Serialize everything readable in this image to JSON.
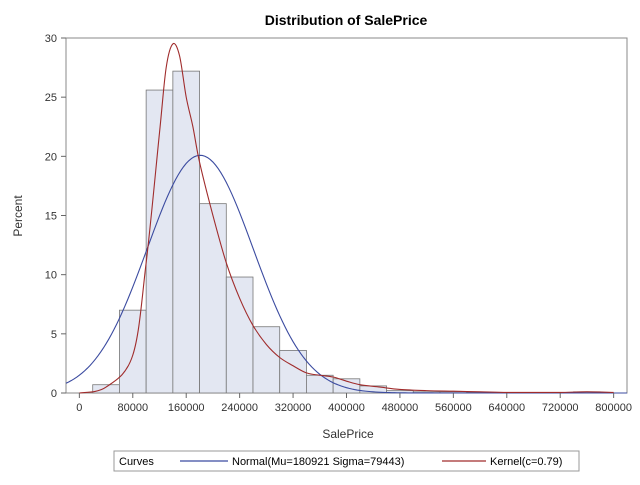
{
  "chart_data": {
    "type": "bar",
    "title": "Distribution of SalePrice",
    "xlabel": "SalePrice",
    "ylabel": "Percent",
    "xlim": [
      -20000,
      820000
    ],
    "ylim": [
      0,
      30
    ],
    "x_ticks": [
      0,
      80000,
      160000,
      240000,
      320000,
      400000,
      480000,
      560000,
      640000,
      720000,
      800000
    ],
    "y_ticks": [
      0,
      5,
      10,
      15,
      20,
      25,
      30
    ],
    "bin_width": 40000,
    "bins": [
      {
        "start": 20000,
        "end": 60000,
        "value": 0.7
      },
      {
        "start": 60000,
        "end": 100000,
        "value": 7.0
      },
      {
        "start": 100000,
        "end": 140000,
        "value": 25.6
      },
      {
        "start": 140000,
        "end": 180000,
        "value": 27.2
      },
      {
        "start": 180000,
        "end": 220000,
        "value": 16.0
      },
      {
        "start": 220000,
        "end": 260000,
        "value": 9.8
      },
      {
        "start": 260000,
        "end": 300000,
        "value": 5.6
      },
      {
        "start": 300000,
        "end": 340000,
        "value": 3.6
      },
      {
        "start": 340000,
        "end": 380000,
        "value": 1.5
      },
      {
        "start": 380000,
        "end": 420000,
        "value": 1.2
      },
      {
        "start": 420000,
        "end": 460000,
        "value": 0.6
      },
      {
        "start": 460000,
        "end": 500000,
        "value": 0.2
      },
      {
        "start": 500000,
        "end": 540000,
        "value": 0.1
      },
      {
        "start": 540000,
        "end": 580000,
        "value": 0.1
      },
      {
        "start": 580000,
        "end": 620000,
        "value": 0.05
      },
      {
        "start": 620000,
        "end": 660000,
        "value": 0.05
      },
      {
        "start": 660000,
        "end": 700000,
        "value": 0.05
      },
      {
        "start": 700000,
        "end": 740000,
        "value": 0.05
      },
      {
        "start": 740000,
        "end": 780000,
        "value": 0.1
      }
    ],
    "series": [
      {
        "name": "Normal(Mu=180921 Sigma=79443)",
        "kind": "normal",
        "mu": 180921,
        "sigma": 79443,
        "color": "#3B4BA0"
      },
      {
        "name": "Kernel(c=0.79)",
        "kind": "kernel",
        "color": "#A02C2C",
        "x": [
          0,
          40000,
          80000,
          100000,
          120000,
          130000,
          140000,
          150000,
          160000,
          170000,
          180000,
          200000,
          220000,
          240000,
          260000,
          280000,
          300000,
          320000,
          340000,
          360000,
          380000,
          400000,
          420000,
          450000,
          480000,
          520000,
          560000,
          600000,
          640000,
          680000,
          720000,
          760000,
          800000
        ],
        "y": [
          0,
          0.5,
          3.2,
          11.0,
          22.0,
          27.5,
          29.5,
          28.5,
          25.0,
          22.5,
          19.5,
          15.0,
          11.0,
          8.0,
          5.7,
          4.1,
          3.0,
          2.3,
          1.7,
          1.5,
          1.35,
          1.0,
          0.7,
          0.5,
          0.3,
          0.2,
          0.15,
          0.1,
          0.05,
          0.05,
          0.05,
          0.1,
          0.05
        ]
      }
    ],
    "legend": {
      "position": "bottom",
      "title": "Curves",
      "entries": [
        "Normal(Mu=180921 Sigma=79443)",
        "Kernel(c=0.79)"
      ]
    },
    "colors": {
      "bar_fill": "#E3E7F2",
      "bar_stroke": "#777777",
      "frame": "#888888",
      "normal": "#3B4BA0",
      "kernel": "#A02C2C"
    },
    "grid": false
  }
}
